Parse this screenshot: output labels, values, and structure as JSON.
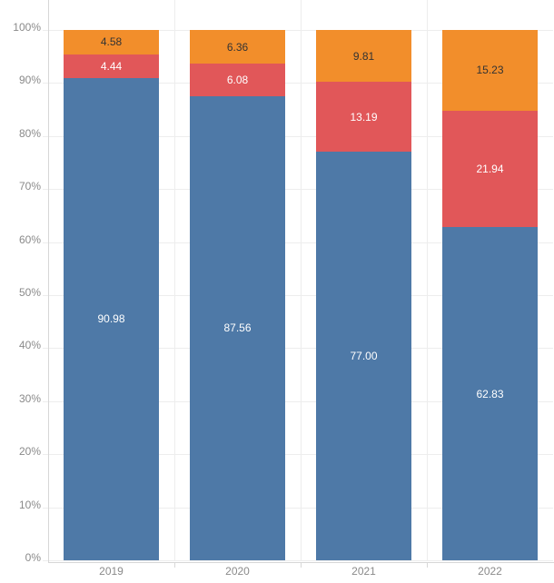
{
  "chart_data": {
    "type": "bar",
    "variant": "stacked-100-percent",
    "title": "",
    "xlabel": "",
    "ylabel": "",
    "legend": "none",
    "categories": [
      "2019",
      "2020",
      "2021",
      "2022"
    ],
    "series": [
      {
        "name": "series-1-blue",
        "color": "#4e79a7",
        "label_color": "#ffffff",
        "values": [
          90.98,
          87.56,
          77.0,
          62.83
        ]
      },
      {
        "name": "series-2-red",
        "color": "#e15759",
        "label_color": "#ffffff",
        "values": [
          4.44,
          6.08,
          13.19,
          21.94
        ]
      },
      {
        "name": "series-3-orange",
        "color": "#f28e2b",
        "label_color": "#333333",
        "values": [
          4.58,
          6.36,
          9.81,
          15.23
        ]
      }
    ],
    "value_labels": [
      [
        "90.98",
        "87.56",
        "77.00",
        "62.83"
      ],
      [
        "4.44",
        "6.08",
        "13.19",
        "21.94"
      ],
      [
        "4.58",
        "6.36",
        "9.81",
        "15.23"
      ]
    ],
    "y_axis": {
      "min": 0,
      "max": 100,
      "tick_step": 10,
      "tick_labels": [
        "0%",
        "10%",
        "20%",
        "30%",
        "40%",
        "50%",
        "60%",
        "70%",
        "80%",
        "90%",
        "100%"
      ],
      "grid": true
    }
  },
  "colors": {
    "background": "#ffffff",
    "axis_text": "#8a8a8a",
    "gridline": "#ededed",
    "axis_line": "#d7d7d7"
  }
}
